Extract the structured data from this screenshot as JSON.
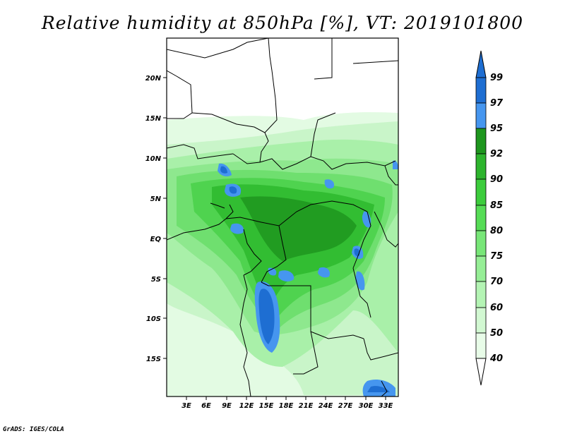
{
  "title": "Relative humidity at 850hPa [%], VT: 2019101800",
  "credit": "GrADS: IGES/COLA",
  "map": {
    "lat_ticks": [
      "20N",
      "15N",
      "10N",
      "5N",
      "EQ",
      "5S",
      "10S",
      "15S"
    ],
    "lon_ticks": [
      "3E",
      "6E",
      "9E",
      "12E",
      "15E",
      "18E",
      "21E",
      "24E",
      "27E",
      "30E",
      "33E"
    ],
    "lon_range": [
      0,
      35
    ],
    "lat_range": [
      -20,
      25
    ]
  },
  "colorbar": {
    "levels": [
      "99",
      "97",
      "95",
      "92",
      "90",
      "85",
      "80",
      "75",
      "70",
      "60",
      "50",
      "40"
    ],
    "colors": [
      "#1e6ed2",
      "#4696ef",
      "#1e961e",
      "#2db42d",
      "#3ccc3c",
      "#56dc56",
      "#78e678",
      "#96ee96",
      "#b4f4b4",
      "#d2f8d2",
      "#e8fce8",
      "#ffffff"
    ],
    "top_arrow_color": "#1e6ed2"
  }
}
